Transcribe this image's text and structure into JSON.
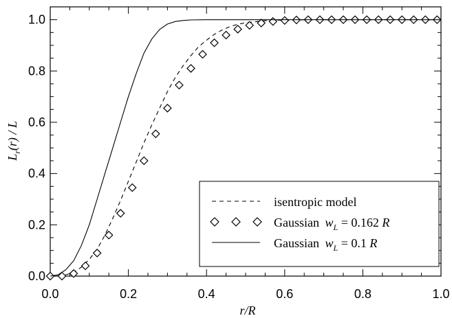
{
  "chart_data": {
    "type": "line",
    "xlabel": "r/R",
    "ylabel": "L_r(r)/L",
    "xlim": [
      0.0,
      1.0
    ],
    "ylim": [
      0.0,
      1.05
    ],
    "xticks": [
      "0.0",
      "0.2",
      "0.4",
      "0.6",
      "0.8",
      "1.0"
    ],
    "yticks": [
      "0.0",
      "0.2",
      "0.4",
      "0.6",
      "0.8",
      "1.0"
    ],
    "grid": false,
    "legend_position": "bottom-right",
    "series": [
      {
        "name": "isentropic model",
        "style": "dashed",
        "x": [
          0.0,
          0.02,
          0.04,
          0.06,
          0.08,
          0.1,
          0.12,
          0.14,
          0.16,
          0.18,
          0.2,
          0.22,
          0.24,
          0.26,
          0.28,
          0.3,
          0.32,
          0.34,
          0.36,
          0.38,
          0.4,
          0.42,
          0.44,
          0.46,
          0.48,
          0.5,
          0.55,
          0.6,
          0.7,
          0.8,
          0.9,
          1.0
        ],
        "y": [
          0.0,
          0.001,
          0.005,
          0.015,
          0.035,
          0.065,
          0.105,
          0.16,
          0.225,
          0.295,
          0.37,
          0.445,
          0.52,
          0.59,
          0.655,
          0.72,
          0.775,
          0.82,
          0.86,
          0.895,
          0.92,
          0.943,
          0.96,
          0.973,
          0.982,
          0.988,
          0.996,
          0.999,
          1.0,
          1.0,
          1.0,
          1.0
        ]
      },
      {
        "name": "Gaussian",
        "label_suffix": "w_L = 0.162 R",
        "style": "diamond",
        "x": [
          0.0,
          0.03,
          0.06,
          0.09,
          0.12,
          0.15,
          0.18,
          0.21,
          0.24,
          0.27,
          0.3,
          0.33,
          0.36,
          0.39,
          0.42,
          0.45,
          0.48,
          0.51,
          0.54,
          0.57,
          0.6,
          0.63,
          0.66,
          0.69,
          0.72,
          0.75,
          0.78,
          0.81,
          0.84,
          0.87,
          0.9,
          0.93,
          0.96,
          0.99
        ],
        "y": [
          0.0,
          0.0,
          0.01,
          0.04,
          0.09,
          0.16,
          0.245,
          0.345,
          0.45,
          0.555,
          0.655,
          0.745,
          0.81,
          0.865,
          0.91,
          0.94,
          0.963,
          0.978,
          0.987,
          0.993,
          0.997,
          0.999,
          1.0,
          1.0,
          1.0,
          1.0,
          1.0,
          1.0,
          1.0,
          1.0,
          1.0,
          1.0,
          1.0,
          1.0
        ]
      },
      {
        "name": "Gaussian",
        "label_suffix": "w_L = 0.1 R",
        "style": "solid",
        "x": [
          0.0,
          0.02,
          0.04,
          0.06,
          0.08,
          0.1,
          0.12,
          0.14,
          0.16,
          0.18,
          0.2,
          0.22,
          0.24,
          0.26,
          0.28,
          0.3,
          0.32,
          0.34,
          0.36,
          0.4,
          0.5,
          0.6,
          0.8,
          1.0
        ],
        "y": [
          0.0,
          0.005,
          0.025,
          0.06,
          0.12,
          0.2,
          0.3,
          0.4,
          0.5,
          0.6,
          0.7,
          0.79,
          0.87,
          0.925,
          0.962,
          0.983,
          0.993,
          0.997,
          0.999,
          1.0,
          1.0,
          1.0,
          1.0,
          1.0
        ]
      }
    ],
    "legend": {
      "entries": [
        "isentropic model",
        "Gaussian w_L = 0.162 R",
        "Gaussian w_L = 0.1 R"
      ]
    }
  }
}
